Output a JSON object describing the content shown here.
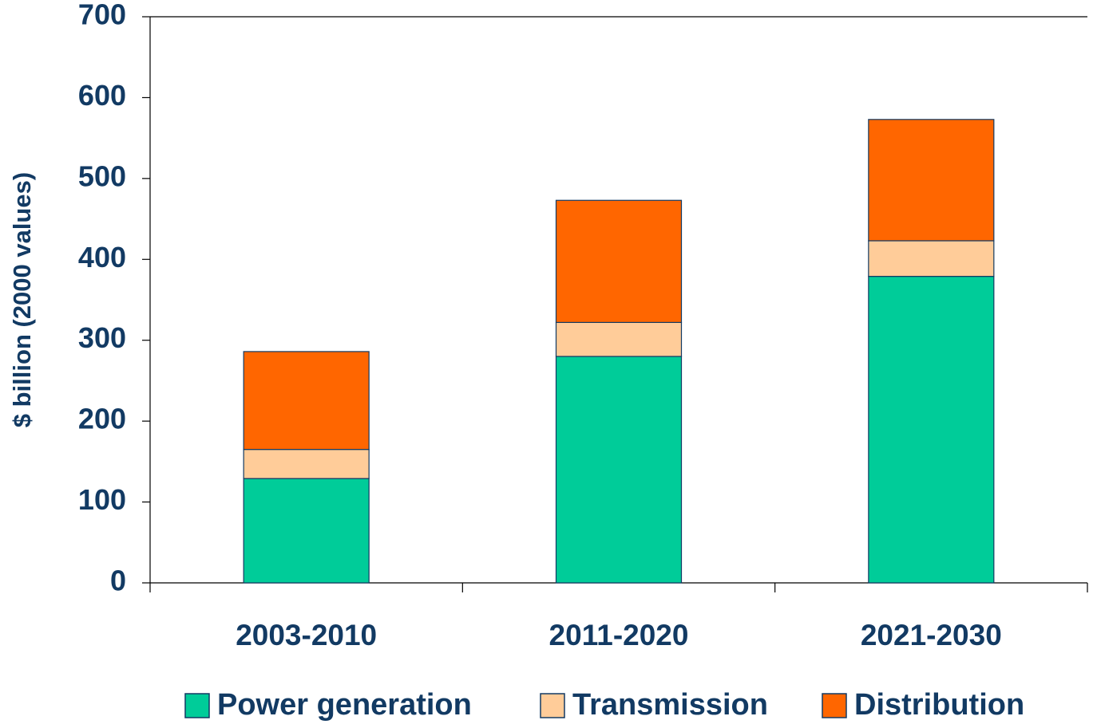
{
  "chart_data": {
    "type": "stacked_bar",
    "y_label": "$ billion (2000 values)",
    "categories": [
      "2003-2010",
      "2011-2020",
      "2021-2030"
    ],
    "series": [
      {
        "name": "Power generation",
        "color": "#00cc99",
        "values": [
          129,
          280,
          379
        ]
      },
      {
        "name": "Transmission",
        "color": "#ffcc99",
        "values": [
          36,
          42,
          44
        ]
      },
      {
        "name": "Distribution",
        "color": "#ff6600",
        "values": [
          121,
          151,
          150
        ]
      }
    ],
    "ylim": [
      0,
      700
    ],
    "yticks": [
      0,
      100,
      200,
      300,
      400,
      500,
      600,
      700
    ],
    "legend": "bottom"
  }
}
